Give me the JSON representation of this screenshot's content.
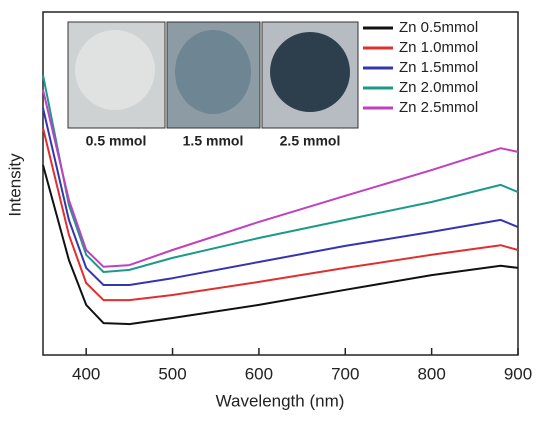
{
  "chart_data": {
    "type": "line",
    "x_label": "Wavelength (nm)",
    "y_label": "Intensity",
    "x": [
      350,
      380,
      400,
      420,
      450,
      500,
      600,
      700,
      800,
      880,
      900
    ],
    "series": [
      {
        "name": "Zn 0.5mmol",
        "color": "#111111",
        "values": [
          55.4,
          27.7,
          14.6,
          9.3,
          9.0,
          10.8,
          14.6,
          19.0,
          23.3,
          26.0,
          25.4
        ]
      },
      {
        "name": "Zn 1.0mmol",
        "color": "#e0302e",
        "values": [
          66.2,
          35.0,
          21.0,
          16.0,
          16.0,
          17.5,
          21.3,
          25.4,
          29.2,
          32.0,
          30.6
        ]
      },
      {
        "name": "Zn 1.5mmol",
        "color": "#3535b0",
        "values": [
          72.0,
          39.4,
          25.4,
          20.4,
          20.4,
          22.4,
          27.1,
          31.8,
          35.9,
          39.4,
          37.3
        ]
      },
      {
        "name": "Zn 2.0mmol",
        "color": "#1a9a8a",
        "values": [
          81.6,
          43.7,
          29.2,
          24.2,
          24.8,
          28.3,
          34.1,
          39.4,
          44.6,
          49.6,
          47.5
        ]
      },
      {
        "name": "Zn 2.5mmol",
        "color": "#c040c0",
        "values": [
          77.3,
          45.2,
          30.6,
          25.7,
          26.2,
          30.6,
          38.8,
          46.4,
          53.9,
          60.3,
          59.2
        ]
      }
    ],
    "xlim": [
      350,
      900
    ],
    "xticks": [
      400,
      500,
      600,
      700,
      800,
      900
    ],
    "ylim": [
      0,
      100
    ],
    "grid": false,
    "legend": "upper right",
    "annotations": [
      "0.5 mmol",
      "1.5 mmol",
      "2.5 mmol"
    ]
  }
}
